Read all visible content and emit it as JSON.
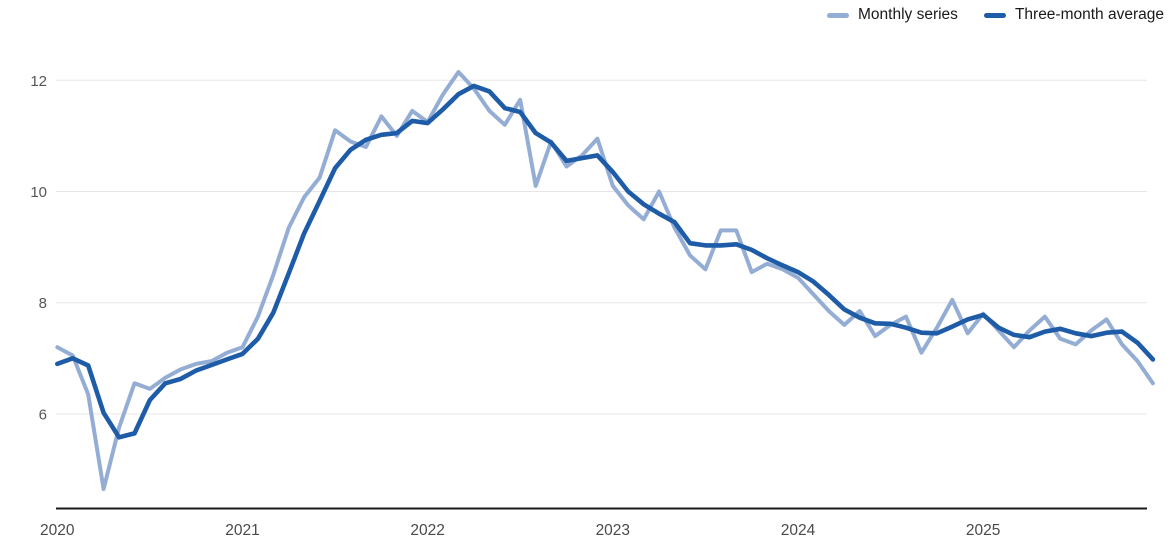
{
  "legend": {
    "items": [
      {
        "label": "Monthly series",
        "color": "#94ADD5"
      },
      {
        "label": "Three-month average",
        "color": "#1E5CA8"
      }
    ]
  },
  "chart_data": {
    "type": "line",
    "title": "",
    "xlabel": "",
    "ylabel": "",
    "grid": "horizontal",
    "legend_position": "top-right",
    "frequency": "monthly",
    "start_month": "2020-01",
    "end_month": "2025-12",
    "x_tick_labels": [
      "2020",
      "2021",
      "2022",
      "2023",
      "2024",
      "2025"
    ],
    "y_ticks": [
      6,
      8,
      10,
      12
    ],
    "ylim": [
      4.35,
      12.55
    ],
    "series": [
      {
        "name": "Monthly series",
        "color": "#94ADD5",
        "values": [
          7.2,
          7.05,
          6.35,
          4.65,
          5.75,
          6.55,
          6.45,
          6.65,
          6.8,
          6.9,
          6.95,
          7.1,
          7.2,
          7.75,
          8.5,
          9.35,
          9.9,
          10.25,
          11.1,
          10.9,
          10.8,
          11.35,
          11.0,
          11.45,
          11.25,
          11.75,
          12.15,
          11.85,
          11.45,
          11.2,
          11.65,
          10.1,
          10.9,
          10.45,
          10.65,
          10.95,
          10.1,
          9.75,
          9.5,
          10.0,
          9.35,
          8.85,
          8.6,
          9.3,
          9.3,
          8.55,
          8.7,
          8.6,
          8.45,
          8.15,
          7.85,
          7.6,
          7.85,
          7.4,
          7.6,
          7.75,
          7.1,
          7.55,
          8.05,
          7.45,
          7.8,
          7.5,
          7.2,
          7.5,
          7.75,
          7.35,
          7.25,
          7.5,
          7.7,
          7.25,
          6.95,
          6.55
        ]
      },
      {
        "name": "Three-month average",
        "color": "#1E5CA8",
        "values": [
          6.9,
          7.0,
          6.87,
          6.02,
          5.58,
          5.65,
          6.25,
          6.55,
          6.63,
          6.78,
          6.88,
          6.98,
          7.08,
          7.35,
          7.82,
          8.53,
          9.25,
          9.83,
          10.42,
          10.75,
          10.93,
          11.02,
          11.05,
          11.27,
          11.23,
          11.48,
          11.75,
          11.9,
          11.8,
          11.5,
          11.43,
          11.05,
          10.88,
          10.55,
          10.6,
          10.65,
          10.35,
          10.0,
          9.77,
          9.6,
          9.45,
          9.07,
          9.03,
          9.03,
          9.05,
          8.95,
          8.8,
          8.67,
          8.55,
          8.38,
          8.14,
          7.88,
          7.73,
          7.63,
          7.62,
          7.55,
          7.46,
          7.45,
          7.57,
          7.7,
          7.78,
          7.55,
          7.42,
          7.38,
          7.48,
          7.53,
          7.45,
          7.4,
          7.46,
          7.48,
          7.28,
          6.98
        ]
      }
    ]
  },
  "axis": {
    "x_years": [
      2020,
      2021,
      2022,
      2023,
      2024,
      2025
    ]
  }
}
